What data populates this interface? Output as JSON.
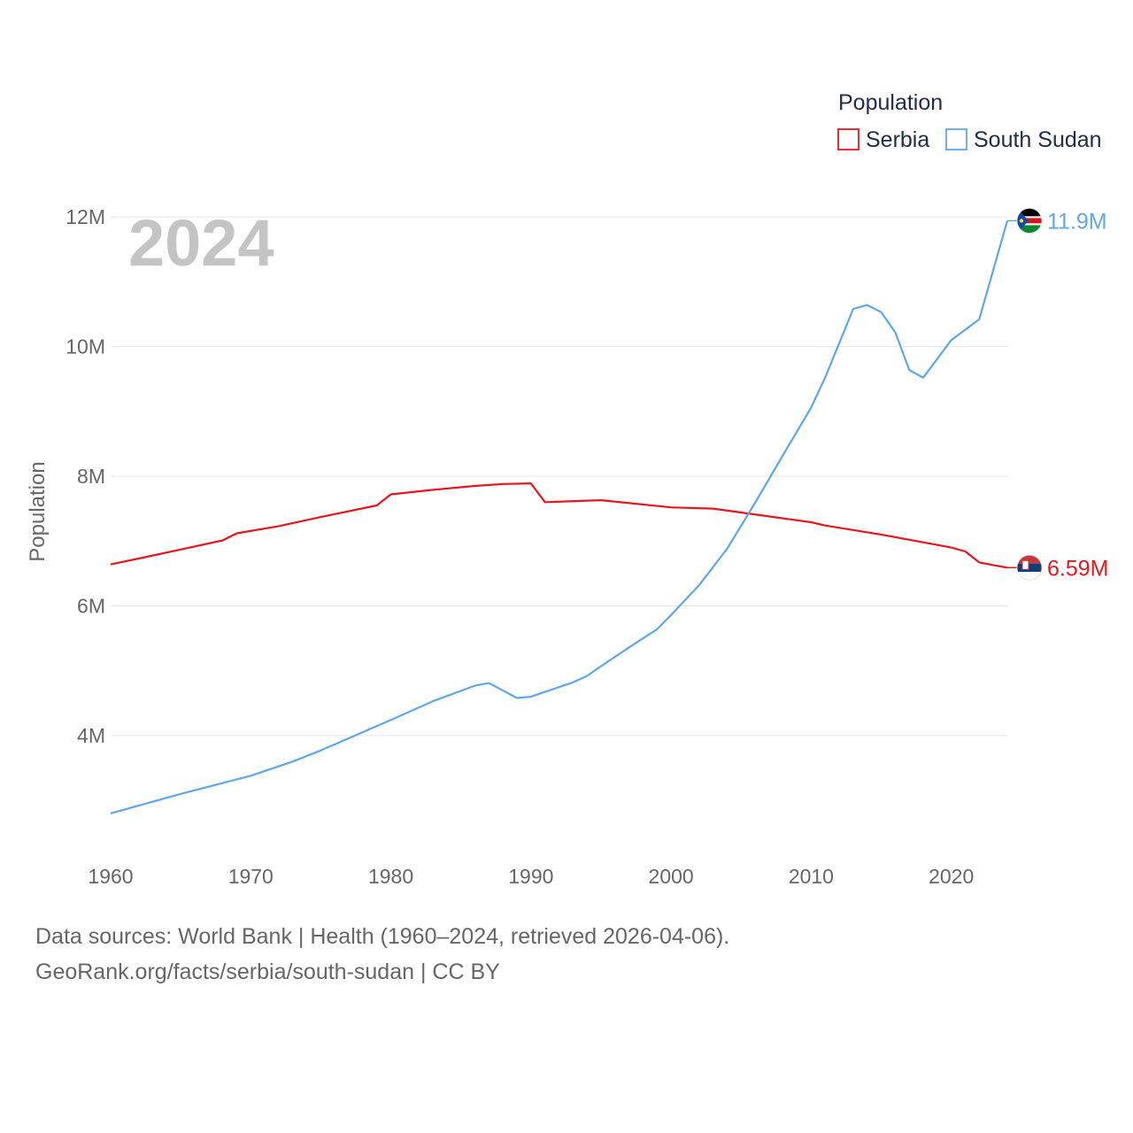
{
  "chart_data": {
    "type": "line",
    "title": "Population",
    "year_label": "2024",
    "ylabel": "Population",
    "xlabel": "",
    "xlim": [
      1960,
      2024
    ],
    "ylim": [
      2500000,
      12000000
    ],
    "x_ticks": [
      1960,
      1970,
      1980,
      1990,
      2000,
      2010,
      2020
    ],
    "y_ticks": [
      {
        "value": 4000000,
        "label": "4M"
      },
      {
        "value": 6000000,
        "label": "6M"
      },
      {
        "value": 8000000,
        "label": "8M"
      },
      {
        "value": 10000000,
        "label": "10M"
      },
      {
        "value": 12000000,
        "label": "12M"
      }
    ],
    "grid": true,
    "legend_position": "top-right",
    "series": [
      {
        "name": "Serbia",
        "color": "#e8161c",
        "end_label": "6.59M",
        "flag": "serbia-flag",
        "points": [
          [
            1960,
            6640000
          ],
          [
            1962,
            6730000
          ],
          [
            1965,
            6870000
          ],
          [
            1968,
            7010000
          ],
          [
            1969,
            7120000
          ],
          [
            1972,
            7230000
          ],
          [
            1975,
            7370000
          ],
          [
            1979,
            7550000
          ],
          [
            1980,
            7720000
          ],
          [
            1983,
            7790000
          ],
          [
            1986,
            7850000
          ],
          [
            1988,
            7880000
          ],
          [
            1990,
            7890000
          ],
          [
            1991,
            7600000
          ],
          [
            1995,
            7630000
          ],
          [
            2000,
            7520000
          ],
          [
            2003,
            7500000
          ],
          [
            2005,
            7440000
          ],
          [
            2010,
            7290000
          ],
          [
            2011,
            7240000
          ],
          [
            2015,
            7100000
          ],
          [
            2018,
            6980000
          ],
          [
            2020,
            6900000
          ],
          [
            2021,
            6840000
          ],
          [
            2022,
            6670000
          ],
          [
            2023,
            6630000
          ],
          [
            2024,
            6590000
          ]
        ]
      },
      {
        "name": "South Sudan",
        "color": "#5ea7e8",
        "end_label": "11.9M",
        "flag": "south-sudan-flag",
        "points": [
          [
            1960,
            2800000
          ],
          [
            1965,
            3100000
          ],
          [
            1970,
            3380000
          ],
          [
            1973,
            3600000
          ],
          [
            1975,
            3770000
          ],
          [
            1980,
            4240000
          ],
          [
            1983,
            4530000
          ],
          [
            1986,
            4770000
          ],
          [
            1987,
            4810000
          ],
          [
            1989,
            4580000
          ],
          [
            1990,
            4600000
          ],
          [
            1993,
            4820000
          ],
          [
            1994,
            4920000
          ],
          [
            1995,
            5070000
          ],
          [
            1997,
            5360000
          ],
          [
            1999,
            5640000
          ],
          [
            2000,
            5860000
          ],
          [
            2002,
            6320000
          ],
          [
            2004,
            6880000
          ],
          [
            2006,
            7590000
          ],
          [
            2008,
            8330000
          ],
          [
            2010,
            9060000
          ],
          [
            2011,
            9520000
          ],
          [
            2013,
            10580000
          ],
          [
            2014,
            10640000
          ],
          [
            2015,
            10530000
          ],
          [
            2016,
            10220000
          ],
          [
            2017,
            9640000
          ],
          [
            2018,
            9520000
          ],
          [
            2020,
            10100000
          ],
          [
            2022,
            10420000
          ],
          [
            2024,
            11940000
          ]
        ]
      }
    ]
  },
  "footer": {
    "source_line": "Data sources: World Bank | Health (1960–2024, retrieved 2026-04-06).",
    "credit_line": "GeoRank.org/facts/serbia/south-sudan | CC BY"
  }
}
